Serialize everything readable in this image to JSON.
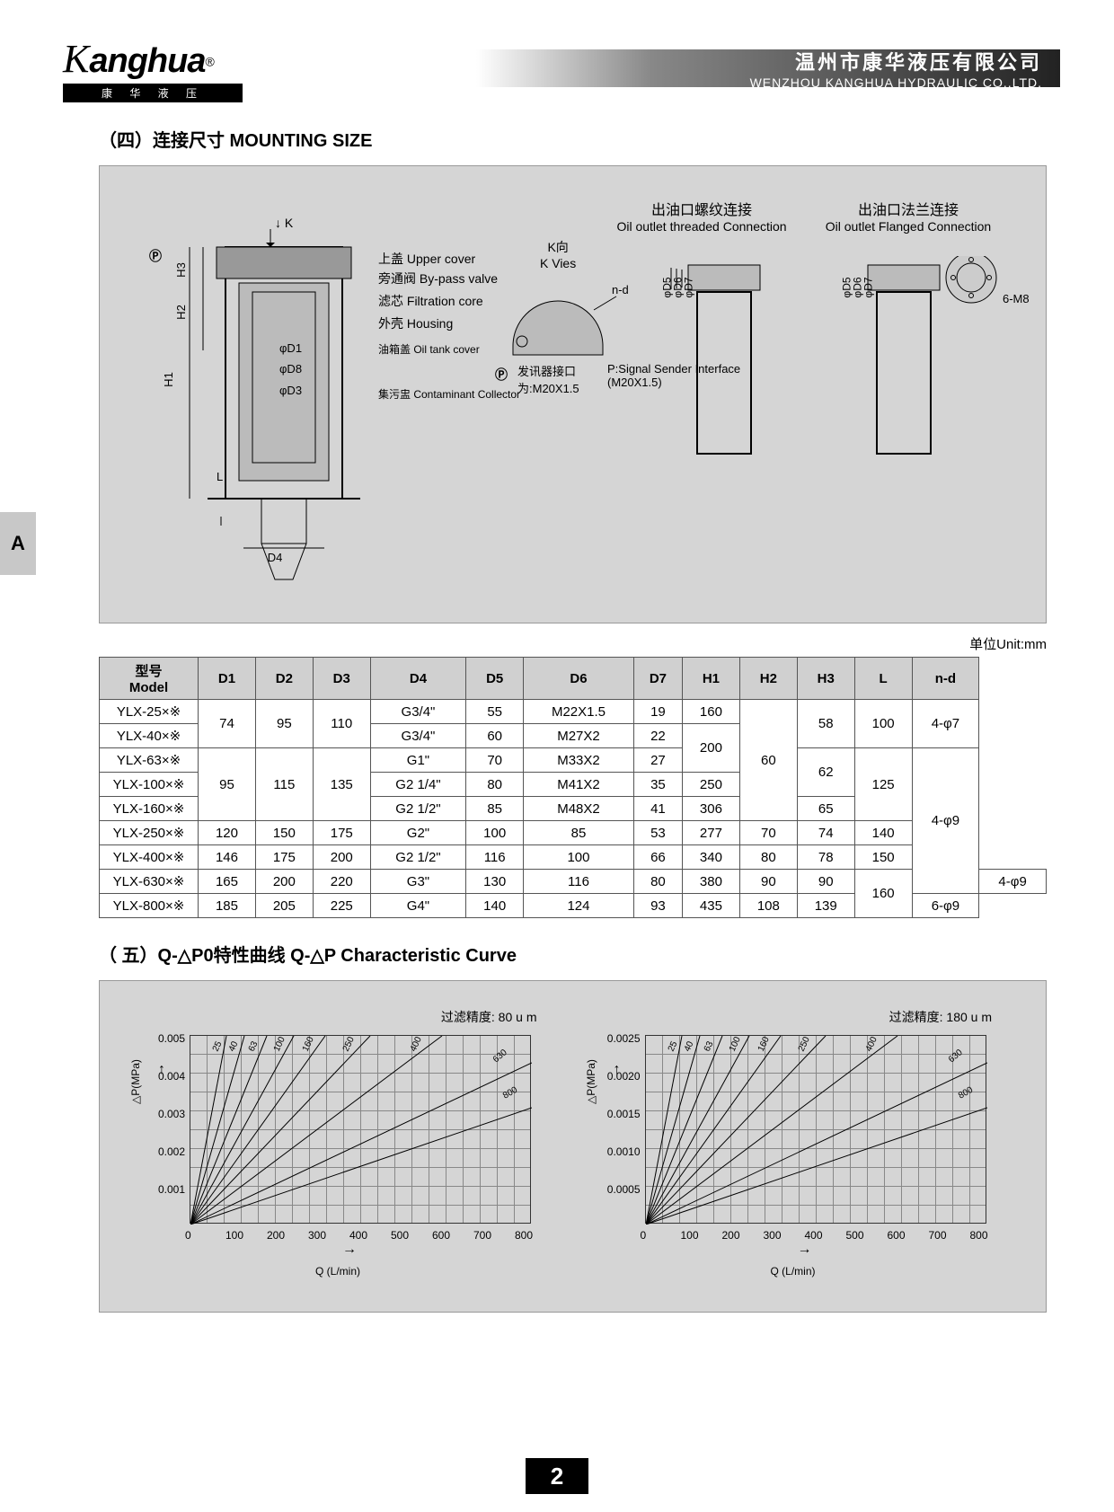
{
  "header": {
    "logo_text": "anghua",
    "logo_sub": "康 华 液 压",
    "company_cn": "温州市康华液压有限公司",
    "company_en": "WENZHOU KANGHUA HYDRAULIC CO.,LTD."
  },
  "side_tab": "A",
  "section4": {
    "title": "（四）连接尺寸 MOUNTING SIZE",
    "labels": {
      "upper_cover": "上盖 Upper cover",
      "bypass": "旁通阀 By-pass valve",
      "filtration": "滤芯 Filtration core",
      "housing": "外壳 Housing",
      "oiltank": "油箱盖 Oil tank cover",
      "collector": "集污盅 Contaminant Collector",
      "k_arrow": "K",
      "k_view": "K向\nK Vies",
      "p_label": "P",
      "p_desc": "发讯器接口\n为:M20X1.5",
      "p_desc_en": "P:Signal Sender Interface\n(M20X1.5)",
      "nd": "n-d",
      "threaded_title_cn": "出油口螺纹连接",
      "threaded_title_en": "Oil outlet threaded Connection",
      "flanged_title_cn": "出油口法兰连接",
      "flanged_title_en": "Oil outlet Flanged Connection",
      "m8": "6-M8",
      "d1": "φD1",
      "d3": "φD3",
      "d4": "D4",
      "d8": "φD8",
      "d5": "φD5",
      "d6": "φD6",
      "d7": "φD7",
      "h1": "H1",
      "h2": "H2",
      "h3": "H3",
      "l": "L"
    }
  },
  "unit_label": "单位Unit:mm",
  "table": {
    "headers": [
      "型号\nModel",
      "D1",
      "D2",
      "D3",
      "D4",
      "D5",
      "D6",
      "D7",
      "H1",
      "H2",
      "H3",
      "L",
      "n-d"
    ],
    "rows": [
      {
        "model": "YLX-25×※",
        "d1": "74",
        "d2": "95",
        "d3": "110",
        "d4": "G3/4\"",
        "d5": "55",
        "d6": "M22X1.5",
        "d7": "19",
        "h1": "160",
        "h2": "60",
        "h3": "58",
        "l": "100",
        "nd": "4-φ7"
      },
      {
        "model": "YLX-40×※",
        "d1": "74",
        "d2": "95",
        "d3": "110",
        "d4": "G3/4\"",
        "d5": "60",
        "d6": "M27X2",
        "d7": "22",
        "h1": "200",
        "h2": "60",
        "h3": "58",
        "l": "100",
        "nd": "4-φ7"
      },
      {
        "model": "YLX-63×※",
        "d1": "95",
        "d2": "115",
        "d3": "135",
        "d4": "G1\"",
        "d5": "70",
        "d6": "M33X2",
        "d7": "27",
        "h1": "200",
        "h2": "60",
        "h3": "62",
        "l": "125",
        "nd": "4-φ9"
      },
      {
        "model": "YLX-100×※",
        "d1": "95",
        "d2": "115",
        "d3": "135",
        "d4": "G2 1/4\"",
        "d5": "80",
        "d6": "M41X2",
        "d7": "35",
        "h1": "250",
        "h2": "60",
        "h3": "62",
        "l": "125",
        "nd": "4-φ9"
      },
      {
        "model": "YLX-160×※",
        "d1": "95",
        "d2": "115",
        "d3": "135",
        "d4": "G2 1/2\"",
        "d5": "85",
        "d6": "M48X2",
        "d7": "41",
        "h1": "306",
        "h2": "60",
        "h3": "65",
        "l": "125",
        "nd": "4-φ9"
      },
      {
        "model": "YLX-250×※",
        "d1": "120",
        "d2": "150",
        "d3": "175",
        "d4": "G2\"",
        "d5": "100",
        "d6": "85",
        "d7": "53",
        "h1": "277",
        "h2": "70",
        "h3": "74",
        "l": "140",
        "nd": "4-φ9"
      },
      {
        "model": "YLX-400×※",
        "d1": "146",
        "d2": "175",
        "d3": "200",
        "d4": "G2 1/2\"",
        "d5": "116",
        "d6": "100",
        "d7": "66",
        "h1": "340",
        "h2": "80",
        "h3": "78",
        "l": "150",
        "nd": "4-φ9"
      },
      {
        "model": "YLX-630×※",
        "d1": "165",
        "d2": "200",
        "d3": "220",
        "d4": "G3\"",
        "d5": "130",
        "d6": "116",
        "d7": "80",
        "h1": "380",
        "h2": "90",
        "h3": "90",
        "l": "160",
        "nd": "4-φ9"
      },
      {
        "model": "YLX-800×※",
        "d1": "185",
        "d2": "205",
        "d3": "225",
        "d4": "G4\"",
        "d5": "140",
        "d6": "124",
        "d7": "93",
        "h1": "435",
        "h2": "108",
        "h3": "139",
        "l": "160",
        "nd": "6-φ9"
      }
    ]
  },
  "section5": {
    "title": "（ 五）Q-△P0特性曲线 Q-△P Characteristic Curve",
    "chart1": {
      "title": "过滤精度: 80 u m",
      "ylabel": "△P(MPa)",
      "xlabel": "Q (L/min)",
      "yticks": [
        "0.005",
        "0.004",
        "0.003",
        "0.002",
        "0.001"
      ],
      "xticks": [
        "0",
        "100",
        "200",
        "300",
        "400",
        "500",
        "600",
        "700",
        "800"
      ],
      "series_labels": [
        "25",
        "40",
        "63",
        "100",
        "160",
        "250",
        "400",
        "630",
        "800"
      ]
    },
    "chart2": {
      "title": "过滤精度: 180 u m",
      "ylabel": "△P(MPa)",
      "xlabel": "Q (L/min)",
      "yticks": [
        "0.0025",
        "0.0020",
        "0.0015",
        "0.0010",
        "0.0005"
      ],
      "xticks": [
        "0",
        "100",
        "200",
        "300",
        "400",
        "500",
        "600",
        "700",
        "800"
      ],
      "series_labels": [
        "25",
        "40",
        "63",
        "100",
        "160",
        "250",
        "400",
        "630",
        "800"
      ]
    }
  },
  "page_number": "2",
  "colors": {
    "bg_gray": "#d5d5d5",
    "header_gray": "#d0d0d0",
    "border": "#555555"
  }
}
